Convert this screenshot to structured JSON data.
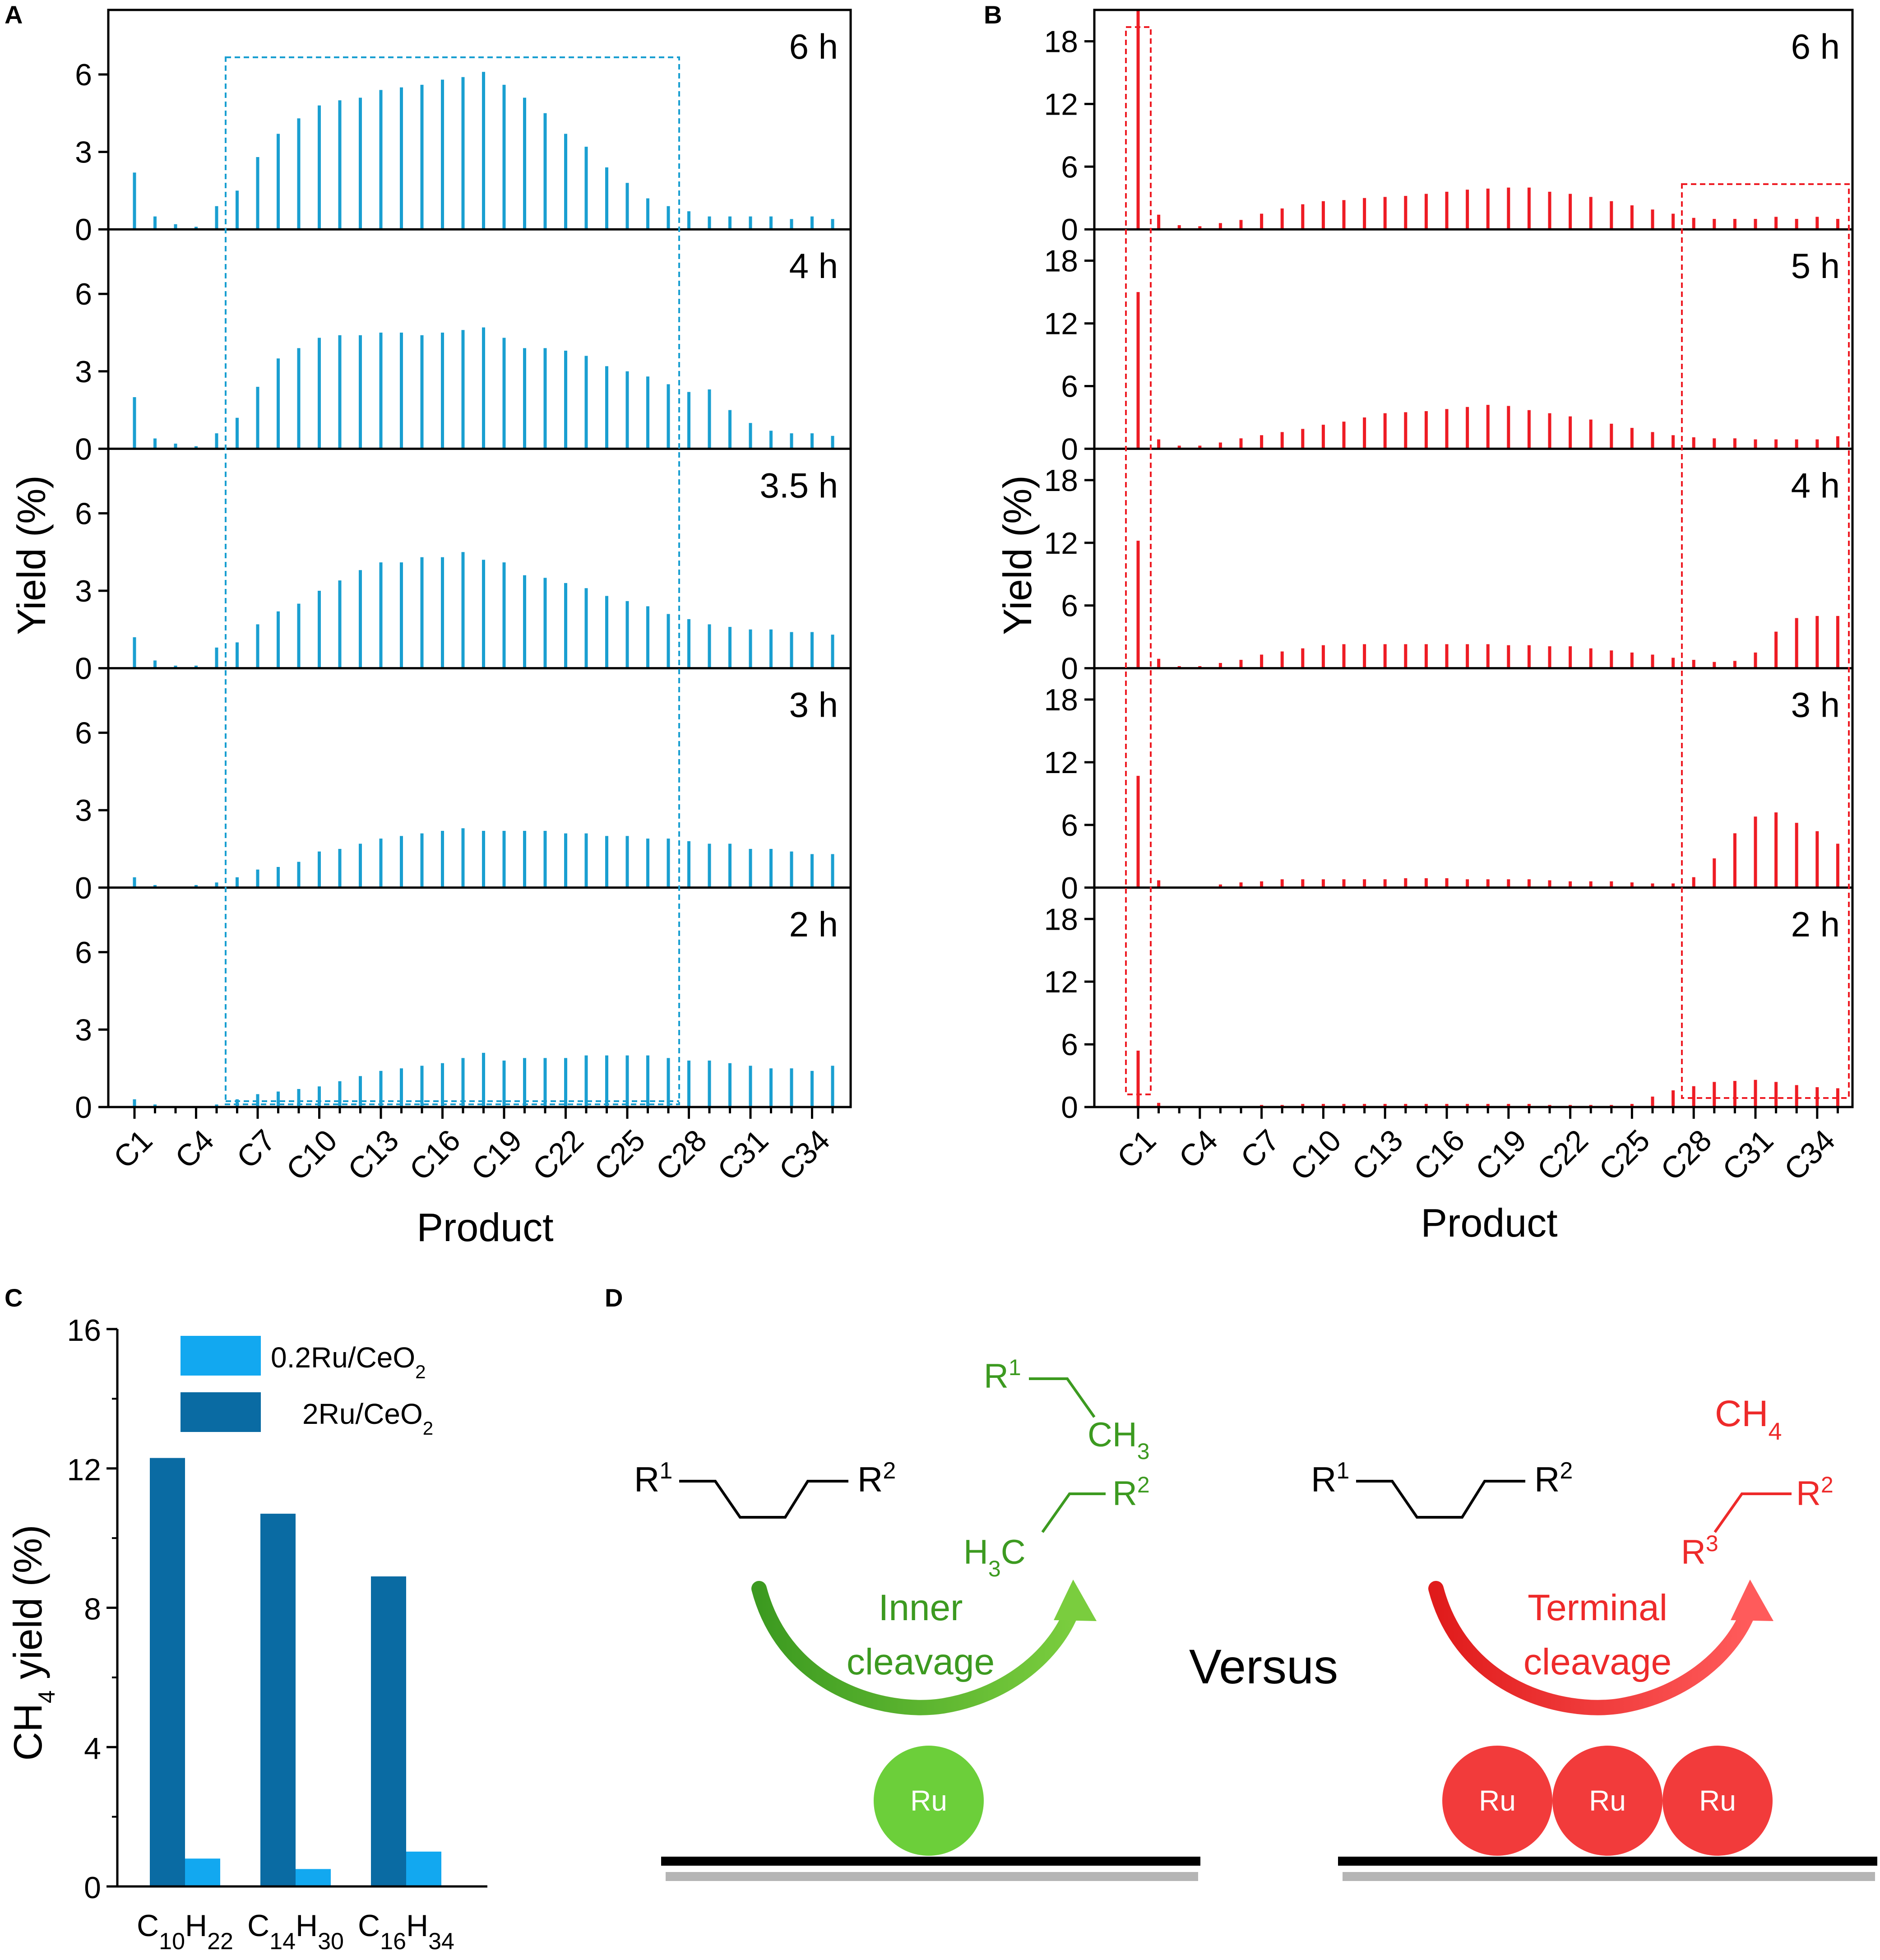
{
  "panels": {
    "A": "A",
    "B": "B",
    "C": "C",
    "D": "D"
  },
  "colors": {
    "panelA": "#1a9fd1",
    "panelB": "#ee1c24",
    "panelC_02Ru": "#12a8f0",
    "panelC_2Ru": "#0a6ba3",
    "inner": "#3c9a20",
    "innerArrowLight": "#7acd3e",
    "ru_green": "#6ccf3a",
    "terminal": "#ee2a2a",
    "ru_red": "#f23b3b"
  },
  "chart_data": [
    {
      "id": "A",
      "type": "bar",
      "ylabel": "Yield (%)",
      "xlabel": "Product",
      "categories": [
        "C1",
        "C2",
        "C3",
        "C4",
        "C5",
        "C6",
        "C7",
        "C8",
        "C9",
        "C10",
        "C11",
        "C12",
        "C13",
        "C14",
        "C15",
        "C16",
        "C17",
        "C18",
        "C19",
        "C20",
        "C21",
        "C22",
        "C23",
        "C24",
        "C25",
        "C26",
        "C27",
        "C28",
        "C29",
        "C30",
        "C31",
        "C32",
        "C33",
        "C34",
        "C35"
      ],
      "x_tick_labels": [
        "C1",
        "C4",
        "C7",
        "C10",
        "C13",
        "C16",
        "C19",
        "C22",
        "C25",
        "C28",
        "C31",
        "C34"
      ],
      "ylim": [
        0,
        8.5
      ],
      "yticks": [
        "0",
        "3",
        "6"
      ],
      "highlight_range": [
        "C6",
        "C27"
      ],
      "series": [
        {
          "name": "6 h",
          "values": [
            2.2,
            0.5,
            0.2,
            0.1,
            0.9,
            1.5,
            2.8,
            3.7,
            4.3,
            4.8,
            5.0,
            5.1,
            5.4,
            5.5,
            5.6,
            5.8,
            5.9,
            6.1,
            5.6,
            5.1,
            4.5,
            3.7,
            3.2,
            2.4,
            1.8,
            1.2,
            0.9,
            0.7,
            0.5,
            0.5,
            0.5,
            0.5,
            0.4,
            0.5,
            0.4
          ]
        },
        {
          "name": "4 h",
          "values": [
            2.0,
            0.4,
            0.2,
            0.1,
            0.6,
            1.2,
            2.4,
            3.5,
            3.9,
            4.3,
            4.4,
            4.4,
            4.5,
            4.5,
            4.4,
            4.5,
            4.6,
            4.7,
            4.3,
            3.9,
            3.9,
            3.8,
            3.6,
            3.2,
            3.0,
            2.8,
            2.5,
            2.2,
            2.3,
            1.5,
            1.0,
            0.7,
            0.6,
            0.6,
            0.5
          ]
        },
        {
          "name": "3.5 h",
          "values": [
            1.2,
            0.3,
            0.1,
            0.1,
            0.8,
            1.0,
            1.7,
            2.2,
            2.5,
            3.0,
            3.4,
            3.8,
            4.1,
            4.1,
            4.3,
            4.3,
            4.5,
            4.2,
            4.1,
            3.6,
            3.5,
            3.3,
            3.1,
            2.8,
            2.6,
            2.4,
            2.1,
            1.9,
            1.7,
            1.6,
            1.5,
            1.5,
            1.4,
            1.4,
            1.3
          ]
        },
        {
          "name": "3 h",
          "values": [
            0.4,
            0.1,
            0.0,
            0.1,
            0.2,
            0.4,
            0.7,
            0.8,
            1.0,
            1.4,
            1.5,
            1.7,
            1.9,
            2.0,
            2.1,
            2.2,
            2.3,
            2.2,
            2.2,
            2.2,
            2.2,
            2.1,
            2.1,
            2.0,
            2.0,
            1.9,
            1.9,
            1.8,
            1.7,
            1.7,
            1.5,
            1.5,
            1.4,
            1.3,
            1.3
          ]
        },
        {
          "name": "2 h",
          "values": [
            0.3,
            0.1,
            0.0,
            0.0,
            0.1,
            0.3,
            0.5,
            0.6,
            0.7,
            0.8,
            1.0,
            1.2,
            1.4,
            1.5,
            1.6,
            1.7,
            1.9,
            2.1,
            1.8,
            1.9,
            1.9,
            1.9,
            2.0,
            2.0,
            2.0,
            2.0,
            1.9,
            1.8,
            1.8,
            1.7,
            1.6,
            1.5,
            1.5,
            1.4,
            1.6
          ]
        }
      ]
    },
    {
      "id": "B",
      "type": "bar",
      "ylabel": "Yield (%)",
      "xlabel": "Product",
      "categories": [
        "C1",
        "C2",
        "C3",
        "C4",
        "C5",
        "C6",
        "C7",
        "C8",
        "C9",
        "C10",
        "C11",
        "C12",
        "C13",
        "C14",
        "C15",
        "C16",
        "C17",
        "C18",
        "C19",
        "C20",
        "C21",
        "C22",
        "C23",
        "C24",
        "C25",
        "C26",
        "C27",
        "C28",
        "C29",
        "C30",
        "C31",
        "C32",
        "C33",
        "C34",
        "C35"
      ],
      "x_tick_labels": [
        "C1",
        "C4",
        "C7",
        "C10",
        "C13",
        "C16",
        "C19",
        "C22",
        "C25",
        "C28",
        "C31",
        "C34"
      ],
      "ylim": [
        0,
        21
      ],
      "yticks": [
        "0",
        "6",
        "12",
        "18"
      ],
      "highlight_ranges": [
        [
          "C1",
          "C1"
        ],
        [
          "C28",
          "C35"
        ]
      ],
      "series": [
        {
          "name": "6 h",
          "values": [
            21.0,
            1.4,
            0.4,
            0.3,
            0.6,
            0.9,
            1.5,
            2.0,
            2.4,
            2.7,
            2.8,
            3.0,
            3.1,
            3.2,
            3.4,
            3.6,
            3.8,
            3.9,
            4.0,
            4.0,
            3.6,
            3.4,
            3.1,
            2.7,
            2.3,
            1.9,
            1.5,
            1.1,
            1.0,
            1.0,
            1.0,
            1.2,
            1.0,
            1.2,
            1.0
          ]
        },
        {
          "name": "5 h",
          "values": [
            15.0,
            0.9,
            0.3,
            0.3,
            0.6,
            1.0,
            1.3,
            1.6,
            1.9,
            2.3,
            2.6,
            3.0,
            3.4,
            3.5,
            3.6,
            3.8,
            4.0,
            4.2,
            4.1,
            3.7,
            3.4,
            3.1,
            2.8,
            2.4,
            2.0,
            1.6,
            1.3,
            1.1,
            1.0,
            1.0,
            0.9,
            0.9,
            0.9,
            0.9,
            1.2
          ]
        },
        {
          "name": "4 h",
          "values": [
            12.2,
            0.9,
            0.2,
            0.2,
            0.5,
            0.8,
            1.3,
            1.6,
            1.9,
            2.2,
            2.3,
            2.3,
            2.3,
            2.3,
            2.3,
            2.3,
            2.3,
            2.3,
            2.2,
            2.2,
            2.1,
            2.1,
            1.9,
            1.7,
            1.5,
            1.3,
            1.0,
            0.8,
            0.6,
            0.7,
            1.5,
            3.5,
            4.8,
            5.0,
            5.0
          ]
        },
        {
          "name": "3 h",
          "values": [
            10.7,
            0.7,
            0.1,
            0.1,
            0.3,
            0.5,
            0.6,
            0.8,
            0.8,
            0.8,
            0.8,
            0.8,
            0.8,
            0.9,
            0.9,
            0.9,
            0.8,
            0.8,
            0.8,
            0.8,
            0.7,
            0.6,
            0.6,
            0.6,
            0.5,
            0.4,
            0.4,
            1.0,
            2.8,
            5.2,
            6.8,
            7.2,
            6.2,
            5.4,
            4.2
          ]
        },
        {
          "name": "2 h",
          "values": [
            5.4,
            0.4,
            0.1,
            0.1,
            0.1,
            0.1,
            0.2,
            0.2,
            0.3,
            0.3,
            0.3,
            0.3,
            0.3,
            0.3,
            0.3,
            0.3,
            0.3,
            0.3,
            0.3,
            0.3,
            0.2,
            0.2,
            0.2,
            0.2,
            0.3,
            1.0,
            1.6,
            2.0,
            2.4,
            2.5,
            2.6,
            2.4,
            2.1,
            1.9,
            1.8
          ]
        }
      ]
    },
    {
      "id": "C",
      "type": "bar",
      "ylabel_main": "CH",
      "ylabel_sub": "4",
      "ylabel_rest": " yield (%)",
      "ylim": [
        0,
        16
      ],
      "yticks": [
        "0",
        "4",
        "8",
        "12",
        "16"
      ],
      "categories": [
        {
          "main1": "C",
          "sub1": "10",
          "main2": "H",
          "sub2": "22"
        },
        {
          "main1": "C",
          "sub1": "14",
          "main2": "H",
          "sub2": "30"
        },
        {
          "main1": "C",
          "sub1": "16",
          "main2": "H",
          "sub2": "34"
        }
      ],
      "legend": "top-right",
      "series": [
        {
          "name_main": "0.2Ru/CeO",
          "name_sub": "2",
          "values": [
            0.8,
            0.5,
            1.0
          ]
        },
        {
          "name_main": "2Ru/CeO",
          "name_sub": "2",
          "values": [
            12.3,
            10.7,
            8.9
          ]
        }
      ]
    }
  ],
  "scheme": {
    "left": {
      "reactant": {
        "r1": "R",
        "r1_sup": "1",
        "r2": "R",
        "r2_sup": "2"
      },
      "product_top": {
        "r": "R",
        "r_sup": "1",
        "ch": "CH",
        "ch_sub": "3"
      },
      "product_bottom": {
        "h": "H",
        "h_sub": "3",
        "c": "C",
        "r": "R",
        "r_sup": "2"
      },
      "label_line1": "Inner",
      "label_line2": "cleavage",
      "metal": "Ru"
    },
    "versus": "Versus",
    "right": {
      "reactant": {
        "r1": "R",
        "r1_sup": "1",
        "r2": "R",
        "r2_sup": "2"
      },
      "product_top": {
        "ch": "CH",
        "ch_sub": "4"
      },
      "product_bottom": {
        "r3": "R",
        "r3_sup": "3",
        "r2": "R",
        "r2_sup": "2"
      },
      "label_line1": "Terminal",
      "label_line2": "cleavage",
      "metal": [
        "Ru",
        "Ru",
        "Ru"
      ]
    }
  }
}
